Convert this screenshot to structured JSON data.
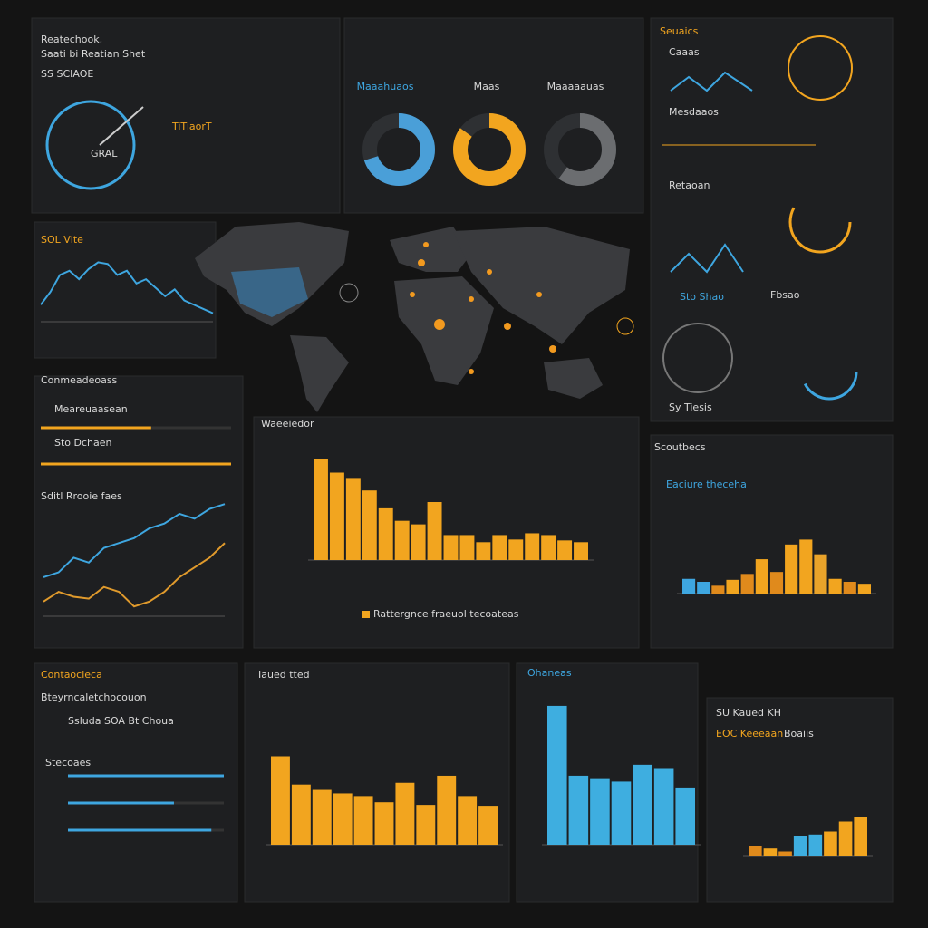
{
  "texts": {
    "p1_kicker": "Reatechook,",
    "p1_title": "Saati bi Reatian Shet",
    "p1_sub": "SS SCIAOE",
    "p1_big": "TiTiaorT",
    "p1_gauge": "GRAL",
    "donut_a": "Maaahuaos",
    "donut_b": "Maas",
    "donut_c": "Maaaaauas",
    "r_title": "Seuaics",
    "r_a": "Caaas",
    "r_b": "Mesdaaos",
    "r_c": "Retaoan",
    "r_d": "Sto Shao",
    "r_e": "Fbsao",
    "r_f": "Sy Tiesis",
    "map_title": "SOL Vlte",
    "lp_title": "Conmeadeoass",
    "lp_a": "Meareuaasean",
    "lp_b": "Sto Dchaen",
    "lp_c": "Sditl Rrooie faes",
    "c_title": "Waeeiedor",
    "c_legend": "Rattergnce fraeuol tecoateas",
    "rc_title": "Scoutbecs",
    "rc_sub": "Eaciure theceha",
    "bl_title": "Contaocleca",
    "bl_sub": "Bteyrncaletchocouon",
    "bl_a": "Ssluda SOA Bt Choua",
    "bl_b": "Stecoaes",
    "bc_title": "Iaued tted",
    "bb_title": "Ohaneas",
    "br_title": "SU Kaued KH",
    "br_sub": "EOC Keeeaan",
    "br_b": "Boaiis"
  },
  "chart_data": [
    {
      "type": "donut",
      "value": 70,
      "color": "#4a9fd8"
    },
    {
      "type": "donut",
      "value": 85,
      "color": "#f2a51f"
    },
    {
      "type": "donut",
      "value": 60,
      "color": "#6b6d70"
    },
    {
      "type": "line",
      "ylim": [
        0,
        80
      ],
      "series": [
        {
          "color": "#3ea6e0",
          "values": [
            20,
            35,
            55,
            60,
            50,
            62,
            70,
            68,
            55,
            60,
            45,
            50,
            40,
            30,
            38,
            25,
            20,
            15,
            10
          ]
        }
      ]
    },
    {
      "type": "hbar",
      "xlim": [
        0,
        100
      ],
      "values": [
        58,
        100
      ],
      "color": "#f2a51f"
    },
    {
      "type": "line",
      "ylim": [
        0,
        130
      ],
      "series": [
        {
          "color": "#3ea6e0",
          "values": [
            40,
            45,
            60,
            55,
            70,
            75,
            80,
            90,
            95,
            105,
            100,
            110,
            115
          ]
        },
        {
          "color": "#e09a2c",
          "values": [
            15,
            25,
            20,
            18,
            30,
            25,
            10,
            15,
            25,
            40,
            50,
            60,
            75
          ]
        }
      ]
    },
    {
      "type": "bar",
      "ylim": [
        0,
        130
      ],
      "color": "#f2a51f",
      "values": [
        113,
        98,
        91,
        78,
        58,
        44,
        40,
        65,
        28,
        28,
        20,
        28,
        23,
        30,
        28,
        22,
        20
      ]
    },
    {
      "type": "bar",
      "ylim": [
        0,
        60
      ],
      "color": "#f2a51f",
      "colors": [
        "#3ea6e0",
        "#3ea6e0",
        "#e08a1c",
        "#f2a51f",
        "#e08a1c",
        "#f2a51f",
        "#e08a1c",
        "#f2a51f",
        "#f2a51f",
        "#e9a32a",
        "#f2a51f",
        "#e08a1c",
        "#f2a51f"
      ],
      "values": [
        15,
        12,
        8,
        14,
        20,
        35,
        22,
        50,
        55,
        40,
        15,
        12,
        10
      ]
    },
    {
      "type": "hbar",
      "xlim": [
        0,
        100
      ],
      "values": [
        100,
        68,
        92
      ],
      "color": "#3ea6e0"
    },
    {
      "type": "bar",
      "ylim": [
        0,
        120
      ],
      "color": "#f2a51f",
      "values": [
        100,
        68,
        62,
        58,
        55,
        48,
        70,
        45,
        78,
        55,
        44
      ]
    },
    {
      "type": "bar",
      "ylim": [
        0,
        180
      ],
      "color": "#3eaee0",
      "values": [
        165,
        82,
        78,
        75,
        95,
        90,
        68
      ]
    },
    {
      "type": "bar",
      "ylim": [
        0,
        50
      ],
      "color": "#f2a51f",
      "colors": [
        "#e08a1c",
        "#f2a51f",
        "#e08a1c",
        "#3eaee0",
        "#3eaee0",
        "#f2a51f",
        "#f2a51f",
        "#f2a51f"
      ],
      "values": [
        10,
        8,
        5,
        20,
        22,
        25,
        35,
        40
      ]
    }
  ]
}
